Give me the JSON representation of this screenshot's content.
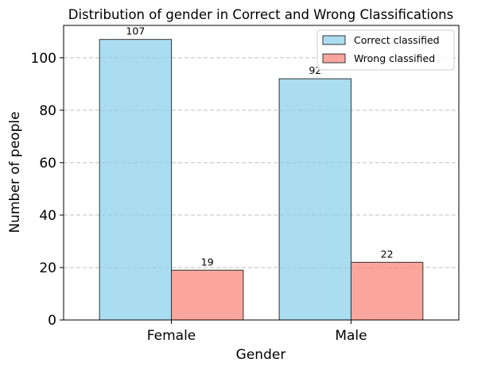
{
  "chart_data": {
    "type": "bar",
    "title": "Distribution of gender in Correct and Wrong Classifications",
    "xlabel": "Gender",
    "ylabel": "Number of people",
    "categories": [
      "Female",
      "Male"
    ],
    "series": [
      {
        "name": "Correct classified",
        "values": [
          107,
          92
        ],
        "color": "#87ceeb"
      },
      {
        "name": "Wrong classified",
        "values": [
          19,
          22
        ],
        "color": "#fa8072"
      }
    ],
    "ylim": [
      0,
      112.35
    ],
    "yticks": [
      0,
      20,
      40,
      60,
      80,
      100
    ],
    "grid": "y-dashed",
    "legend": "top-right"
  }
}
